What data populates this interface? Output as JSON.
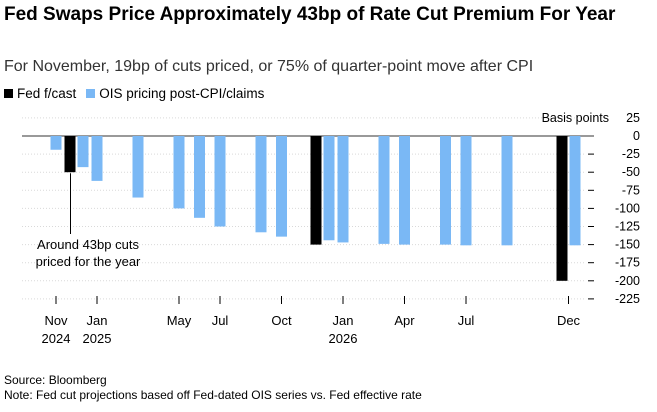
{
  "title": "Fed Swaps Price Approximately 43bp of Rate Cut Premium For Year",
  "subtitle": "For November, 19bp of cuts priced, or 75% of quarter-point move after CPI",
  "source": "Source: Bloomberg",
  "note": "Note: Fed cut projections based off Fed-dated OIS series vs. Fed effective rate",
  "colors": {
    "fed": "#000000",
    "ois": "#7ab8f5",
    "grid": "#d9d9d9"
  },
  "chart_data": {
    "type": "bar",
    "ylabel": "Basis points",
    "ylim": [
      -225,
      25
    ],
    "yticks": [
      25,
      0,
      -25,
      -50,
      -75,
      -100,
      -125,
      -150,
      -175,
      -200,
      -225
    ],
    "x_tick_labels": [
      {
        "month": "Nov",
        "year": "2024"
      },
      {
        "month": "Jan",
        "year": "2025"
      },
      {
        "month": "May",
        "year": ""
      },
      {
        "month": "Jul",
        "year": ""
      },
      {
        "month": "Oct",
        "year": ""
      },
      {
        "month": "Jan",
        "year": "2026"
      },
      {
        "month": "Apr",
        "year": ""
      },
      {
        "month": "Jul",
        "year": ""
      },
      {
        "month": "Dec",
        "year": ""
      }
    ],
    "series": [
      {
        "name": "Fed f/cast",
        "points": [
          {
            "date": "2024-12",
            "value": -50
          },
          {
            "date": "2025-12",
            "value": -150
          },
          {
            "date": "2026-12",
            "value": -200
          }
        ]
      },
      {
        "name": "OIS pricing post-CPI/claims",
        "points": [
          {
            "date": "2024-11",
            "value": -19
          },
          {
            "date": "2024-12",
            "value": -43
          },
          {
            "date": "2025-01",
            "value": -62
          },
          {
            "date": "2025-03",
            "value": -85
          },
          {
            "date": "2025-05",
            "value": -100
          },
          {
            "date": "2025-06",
            "value": -113
          },
          {
            "date": "2025-07",
            "value": -125
          },
          {
            "date": "2025-09",
            "value": -133
          },
          {
            "date": "2025-10",
            "value": -139
          },
          {
            "date": "2025-12",
            "value": -144
          },
          {
            "date": "2026-01",
            "value": -147
          },
          {
            "date": "2026-03",
            "value": -149
          },
          {
            "date": "2026-04",
            "value": -150
          },
          {
            "date": "2026-06",
            "value": -150
          },
          {
            "date": "2026-07",
            "value": -151
          },
          {
            "date": "2026-09",
            "value": -151
          },
          {
            "date": "2026-12",
            "value": -151
          }
        ]
      }
    ],
    "annotation": {
      "line1": "Around 43bp cuts",
      "line2": "priced for the year",
      "target_date": "2024-12"
    }
  }
}
